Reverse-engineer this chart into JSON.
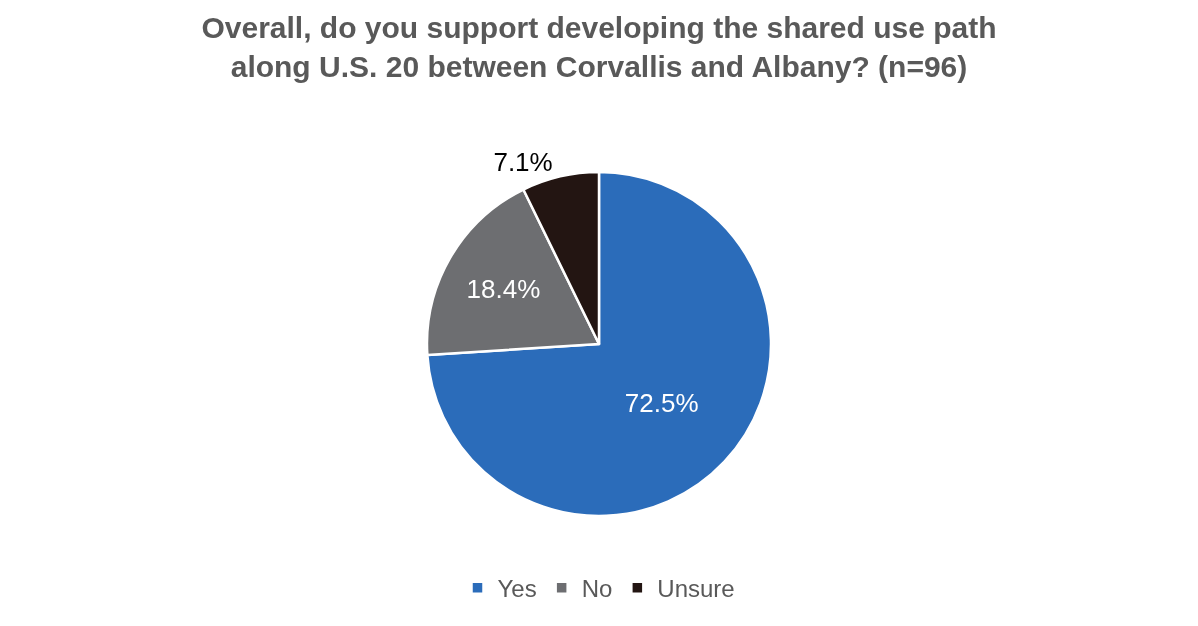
{
  "chart_data": {
    "type": "pie",
    "title": "Overall, do you support developing the shared use path\nalong U.S. 20 between Corvallis and Albany? (n=96)",
    "categories": [
      "Yes",
      "No",
      "Unsure"
    ],
    "values": [
      72.5,
      18.4,
      7.1
    ],
    "value_labels": [
      "72.5%",
      "18.4%",
      "7.1%"
    ],
    "colors": [
      "#2b6cba",
      "#6d6e71",
      "#231512"
    ],
    "legend": "bottom"
  }
}
